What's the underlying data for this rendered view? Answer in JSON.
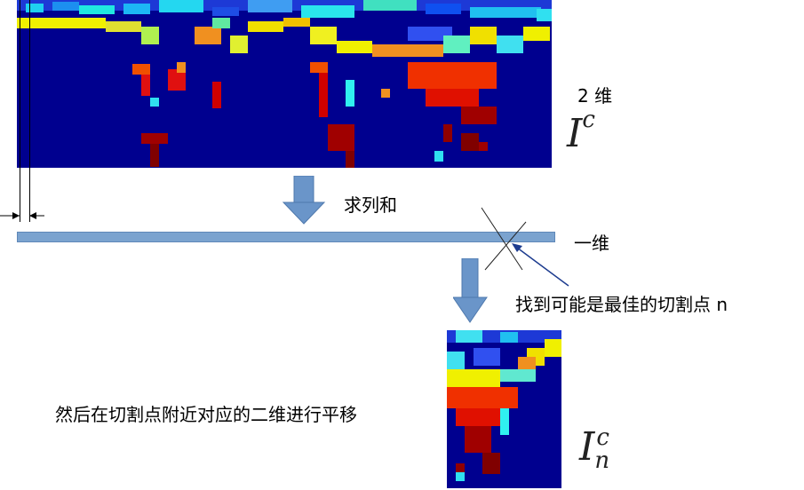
{
  "labels": {
    "twod": "2 维",
    "sum_columns": "求列和",
    "oned": "一维",
    "find_cut": "找到可能是最佳的切割点 n",
    "then_shift": "然后在切割点附近对应的二维进行平移"
  },
  "math": {
    "ic_base": "I",
    "ic_sup": "c",
    "icn_base": "I",
    "icn_sup": "c",
    "icn_sub": "n"
  },
  "colors": {
    "heatmap_background": "#00008f",
    "bar": "#7ba3cf",
    "arrow": "#6a95c9"
  }
}
